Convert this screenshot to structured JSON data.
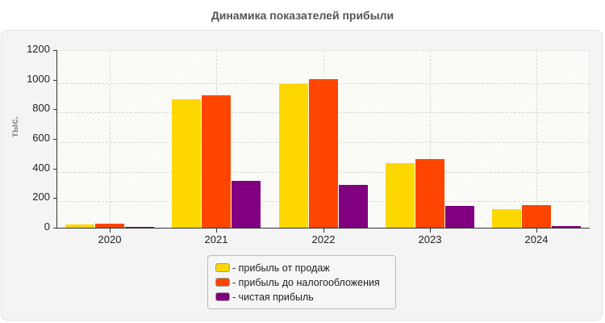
{
  "title": "Динамика показателей прибыли",
  "chart_data": {
    "type": "bar",
    "title": "Динамика показателей прибыли",
    "xlabel": "",
    "ylabel": "тыс.",
    "ylim": [
      0,
      1200
    ],
    "yticks": [
      0,
      200,
      400,
      600,
      800,
      1000,
      1200
    ],
    "grid": true,
    "legend_position": "bottom",
    "categories": [
      "2020",
      "2021",
      "2022",
      "2023",
      "2024"
    ],
    "series": [
      {
        "name": "прибыль от продаж",
        "color": "#FFD700",
        "values": [
          22,
          867,
          971,
          437,
          125
        ]
      },
      {
        "name": "прибыль до налогообложения",
        "color": "#FF4500",
        "values": [
          27,
          895,
          1004,
          464,
          155
        ]
      },
      {
        "name": "чистая прибыль",
        "color": "#800080",
        "values": [
          8,
          316,
          289,
          147,
          13
        ]
      }
    ]
  },
  "legend": {
    "items": [
      {
        "label": "- прибыль от продаж",
        "color": "#FFD700"
      },
      {
        "label": "- прибыль до налогообложения",
        "color": "#FF4500"
      },
      {
        "label": "- чистая прибыль",
        "color": "#800080"
      }
    ]
  }
}
